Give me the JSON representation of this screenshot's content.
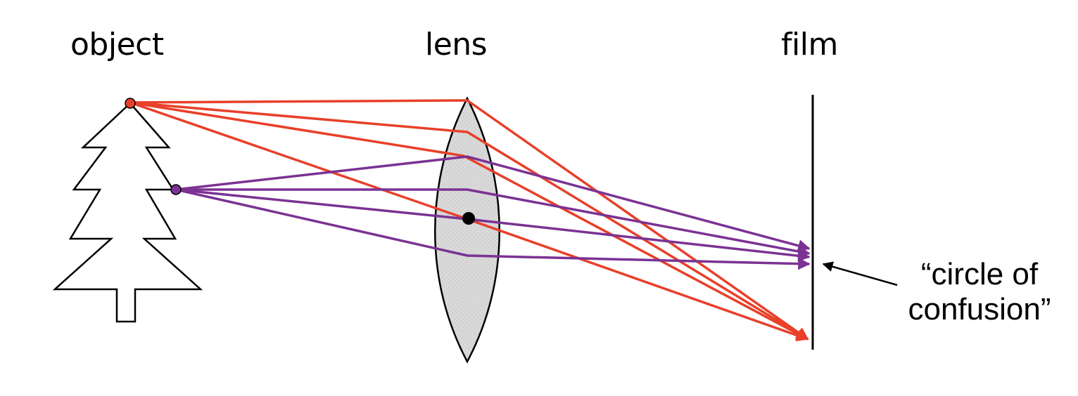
{
  "labels": {
    "object": "object",
    "lens": "lens",
    "film": "film",
    "circle_of_confusion_line1": "“circle of",
    "circle_of_confusion_line2": "confusion”"
  },
  "colors": {
    "red_ray": "#e8402a",
    "purple_ray": "#7b3293",
    "lens_fill": "#d9d9d9",
    "outline": "#000000"
  },
  "icons": {
    "object_shape": "tree-icon",
    "lens_shape": "convex-lens-icon"
  }
}
